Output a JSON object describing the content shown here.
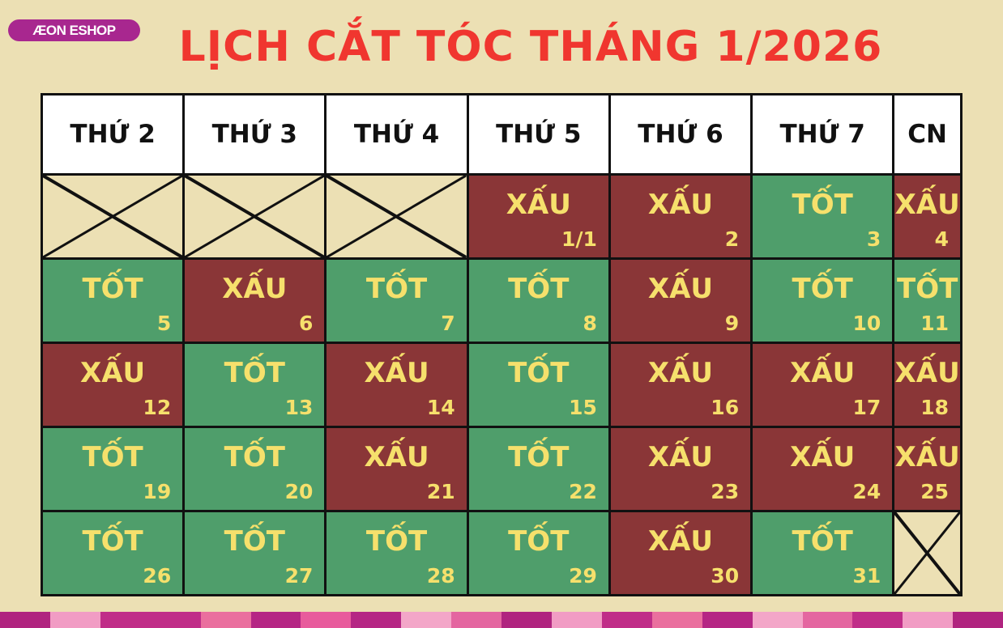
{
  "logo": "ÆON ESHOP",
  "title": "LỊCH CẮT TÓC THÁNG 1/2026",
  "days": [
    "THỨ 2",
    "THỨ 3",
    "THỨ 4",
    "THỨ 5",
    "THỨ 6",
    "THỨ 7",
    "CN"
  ],
  "colors": {
    "bad": "#8a3637",
    "good": "#4f9e6b",
    "text": "#f6e06c",
    "title": "#f0362f"
  },
  "weeks": [
    [
      {
        "empty": true
      },
      {
        "empty": true
      },
      {
        "empty": true
      },
      {
        "label": "XẤU",
        "day": "1/1"
      },
      {
        "label": "XẤU",
        "day": "2"
      },
      {
        "label": "TỐT",
        "day": "3"
      },
      {
        "label": "XẤU",
        "day": "4"
      }
    ],
    [
      {
        "label": "TỐT",
        "day": "5"
      },
      {
        "label": "XẤU",
        "day": "6"
      },
      {
        "label": "TỐT",
        "day": "7"
      },
      {
        "label": "TỐT",
        "day": "8"
      },
      {
        "label": "XẤU",
        "day": "9"
      },
      {
        "label": "TỐT",
        "day": "10"
      },
      {
        "label": "TỐT",
        "day": "11"
      }
    ],
    [
      {
        "label": "XẤU",
        "day": "12"
      },
      {
        "label": "TỐT",
        "day": "13"
      },
      {
        "label": "XẤU",
        "day": "14"
      },
      {
        "label": "TỐT",
        "day": "15"
      },
      {
        "label": "XẤU",
        "day": "16"
      },
      {
        "label": "XẤU",
        "day": "17"
      },
      {
        "label": "XẤU",
        "day": "18"
      }
    ],
    [
      {
        "label": "TỐT",
        "day": "19"
      },
      {
        "label": "TỐT",
        "day": "20"
      },
      {
        "label": "XẤU",
        "day": "21"
      },
      {
        "label": "TỐT",
        "day": "22"
      },
      {
        "label": "XẤU",
        "day": "23"
      },
      {
        "label": "XẤU",
        "day": "24"
      },
      {
        "label": "XẤU",
        "day": "25"
      }
    ],
    [
      {
        "label": "TỐT",
        "day": "26"
      },
      {
        "label": "TỐT",
        "day": "27"
      },
      {
        "label": "TỐT",
        "day": "28"
      },
      {
        "label": "TỐT",
        "day": "29"
      },
      {
        "label": "XẤU",
        "day": "30"
      },
      {
        "label": "TỐT",
        "day": "31"
      },
      {
        "empty": true
      }
    ]
  ]
}
